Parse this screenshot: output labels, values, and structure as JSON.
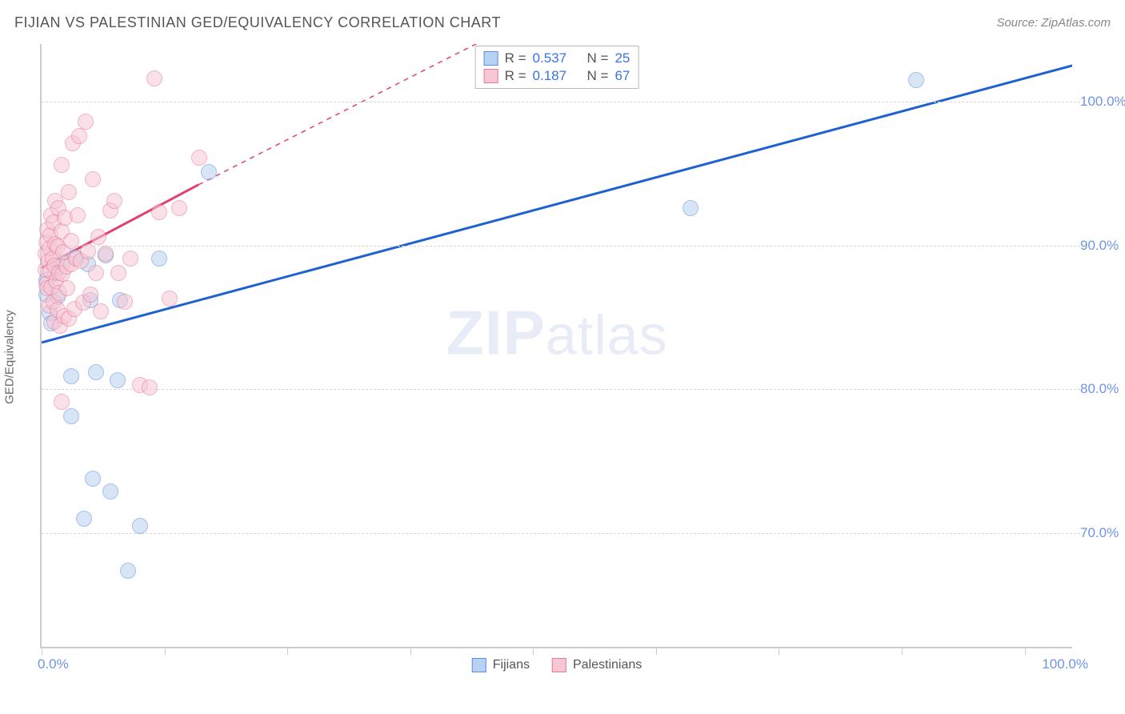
{
  "title": "FIJIAN VS PALESTINIAN GED/EQUIVALENCY CORRELATION CHART",
  "source_label": "Source: ZipAtlas.com",
  "y_axis_label": "GED/Equivalency",
  "x_min_label": "0.0%",
  "x_max_label": "100.0%",
  "watermark_zip": "ZIP",
  "watermark_atlas": "atlas",
  "chart": {
    "type": "scatter",
    "xlim": [
      0,
      105
    ],
    "ylim": [
      62,
      104
    ],
    "y_ticks": [
      70,
      80,
      90,
      100
    ],
    "y_tick_labels": [
      "70.0%",
      "80.0%",
      "90.0%",
      "100.0%"
    ],
    "x_ticks": [
      0,
      12.5,
      25,
      37.5,
      50,
      62.5,
      75,
      87.5,
      100
    ],
    "background_color": "#ffffff",
    "grid_color": "#d8d8d8",
    "axis_color": "#cccccc",
    "tick_label_color": "#6f94e8",
    "marker_radius": 10,
    "marker_opacity": 0.55,
    "series": [
      {
        "name": "Fijians",
        "fill": "#b9d1f2",
        "stroke": "#5a8fd6",
        "trend_color": "#1e62d0",
        "trend_width": 3,
        "trend_dash": "none",
        "trend_x1": 0,
        "trend_y1": 83.2,
        "trend_x2": 105,
        "trend_y2": 102.5,
        "trend_dash_x1": 0,
        "trend_dash_y1": 83.2,
        "trend_dash_x2": 0,
        "trend_dash_y2": 83.2,
        "R_label": "R =",
        "R_value": "0.537",
        "N_label": "N =",
        "N_value": "25",
        "points": [
          [
            0.5,
            87.5
          ],
          [
            0.5,
            86.5
          ],
          [
            0.8,
            85.2
          ],
          [
            1.0,
            84.5
          ],
          [
            1.3,
            88.0
          ],
          [
            1.6,
            86.3
          ],
          [
            2.2,
            88.7
          ],
          [
            3.0,
            80.8
          ],
          [
            3.4,
            89.1
          ],
          [
            4.7,
            88.6
          ],
          [
            5.0,
            86.1
          ],
          [
            5.5,
            81.1
          ],
          [
            6.5,
            89.2
          ],
          [
            7.7,
            80.5
          ],
          [
            8.0,
            86.1
          ],
          [
            12.0,
            89.0
          ],
          [
            17.0,
            95.0
          ],
          [
            3.0,
            78.0
          ],
          [
            5.2,
            73.7
          ],
          [
            7.0,
            72.8
          ],
          [
            4.3,
            70.9
          ],
          [
            10.0,
            70.4
          ],
          [
            8.8,
            67.3
          ],
          [
            66.0,
            92.5
          ],
          [
            89.0,
            101.4
          ]
        ]
      },
      {
        "name": "Palestinians",
        "fill": "#f7c7d4",
        "stroke": "#e47a9a",
        "trend_color": "#e0416f",
        "trend_width": 3,
        "trend_dash": "6,6",
        "trend_x1": 0,
        "trend_y1": 88.4,
        "trend_x2": 16,
        "trend_y2": 94.2,
        "trend_dash_x1": 16,
        "trend_dash_y1": 94.2,
        "trend_dash_x2": 50,
        "trend_dash_y2": 106.0,
        "R_label": "R =",
        "R_value": "0.187",
        "N_label": "N =",
        "N_value": "67",
        "points": [
          [
            0.4,
            88.2
          ],
          [
            0.4,
            89.3
          ],
          [
            0.5,
            87.2
          ],
          [
            0.5,
            90.1
          ],
          [
            0.6,
            86.9
          ],
          [
            0.6,
            91.0
          ],
          [
            0.7,
            88.8
          ],
          [
            0.8,
            85.7
          ],
          [
            0.8,
            89.7
          ],
          [
            0.9,
            90.6
          ],
          [
            0.9,
            88.1
          ],
          [
            1.0,
            87.0
          ],
          [
            1.0,
            92.0
          ],
          [
            1.1,
            89.0
          ],
          [
            1.2,
            86.0
          ],
          [
            1.2,
            91.5
          ],
          [
            1.3,
            88.5
          ],
          [
            1.3,
            84.6
          ],
          [
            1.4,
            90.0
          ],
          [
            1.4,
            93.0
          ],
          [
            1.5,
            87.4
          ],
          [
            1.6,
            85.4
          ],
          [
            1.6,
            89.8
          ],
          [
            1.7,
            92.5
          ],
          [
            1.8,
            88.0
          ],
          [
            1.8,
            86.6
          ],
          [
            1.9,
            84.3
          ],
          [
            2.0,
            90.9
          ],
          [
            2.0,
            95.5
          ],
          [
            2.1,
            87.9
          ],
          [
            2.2,
            89.4
          ],
          [
            2.3,
            85.0
          ],
          [
            2.4,
            91.8
          ],
          [
            2.5,
            88.4
          ],
          [
            2.6,
            86.9
          ],
          [
            2.8,
            93.6
          ],
          [
            2.8,
            84.8
          ],
          [
            3.0,
            90.2
          ],
          [
            3.0,
            88.6
          ],
          [
            3.2,
            97.0
          ],
          [
            3.3,
            85.5
          ],
          [
            3.5,
            89.0
          ],
          [
            3.7,
            92.0
          ],
          [
            3.8,
            97.5
          ],
          [
            4.0,
            88.8
          ],
          [
            4.2,
            85.9
          ],
          [
            4.5,
            98.5
          ],
          [
            4.7,
            89.5
          ],
          [
            5.0,
            86.5
          ],
          [
            5.2,
            94.5
          ],
          [
            5.5,
            88.0
          ],
          [
            5.8,
            90.5
          ],
          [
            6.0,
            85.3
          ],
          [
            6.5,
            89.3
          ],
          [
            7.0,
            92.3
          ],
          [
            7.4,
            93.0
          ],
          [
            7.8,
            88.0
          ],
          [
            8.5,
            86.0
          ],
          [
            9.0,
            89.0
          ],
          [
            10.0,
            80.2
          ],
          [
            11.0,
            80.0
          ],
          [
            11.5,
            101.5
          ],
          [
            12.0,
            92.2
          ],
          [
            13.0,
            86.2
          ],
          [
            14.0,
            92.5
          ],
          [
            16.0,
            96.0
          ],
          [
            2.0,
            79.0
          ]
        ]
      }
    ]
  },
  "legend": {
    "items": [
      {
        "label": "Fijians",
        "fill": "#b9d1f2",
        "stroke": "#5a8fd6"
      },
      {
        "label": "Palestinians",
        "fill": "#f7c7d4",
        "stroke": "#e47a9a"
      }
    ]
  }
}
